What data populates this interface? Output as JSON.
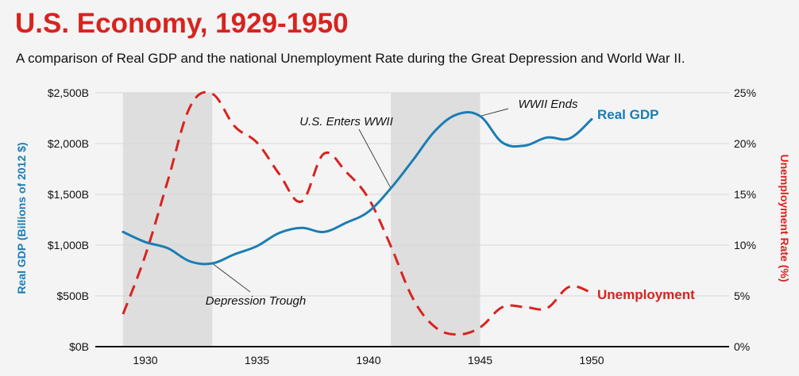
{
  "title": "U.S. Economy, 1929-1950",
  "subtitle": "A comparison of Real GDP and the national Unemployment Rate during the Great Depression and World War II.",
  "colors": {
    "title": "#d8231f",
    "gdp": "#1b7db4",
    "unemployment": "#d8231f",
    "shade": "#dedede",
    "grid": "#d6d6d6"
  },
  "chart_data": {
    "type": "line",
    "x": [
      1929,
      1930,
      1931,
      1932,
      1933,
      1934,
      1935,
      1936,
      1937,
      1938,
      1939,
      1940,
      1941,
      1942,
      1943,
      1944,
      1945,
      1946,
      1947,
      1948,
      1949,
      1950
    ],
    "xticks": [
      "1930",
      "1935",
      "1940",
      "1945",
      "1950"
    ],
    "xlim": [
      1928,
      1955
    ],
    "series": [
      {
        "name": "Real GDP",
        "axis": "left",
        "values": [
          1130,
          1030,
          970,
          840,
          820,
          910,
          990,
          1120,
          1170,
          1130,
          1220,
          1330,
          1560,
          1840,
          2130,
          2290,
          2270,
          2010,
          1980,
          2060,
          2050,
          2240
        ]
      },
      {
        "name": "Unemployment",
        "axis": "right",
        "values": [
          3.2,
          9.0,
          16.3,
          23.6,
          24.9,
          21.7,
          20.1,
          17.0,
          14.3,
          19.0,
          17.2,
          14.6,
          9.9,
          4.7,
          1.9,
          1.2,
          1.9,
          3.9,
          3.9,
          3.8,
          5.9,
          5.3
        ]
      }
    ],
    "left_axis": {
      "label": "Real GDP (Billions of 2012 $)",
      "ticks": [
        "$0B",
        "$500B",
        "$1,000B",
        "$1,500B",
        "$2,000B",
        "$2,500B"
      ],
      "ylim": [
        0,
        2500
      ]
    },
    "right_axis": {
      "label": "Unemployment Rate (%)",
      "ticks": [
        "0%",
        "5%",
        "10%",
        "15%",
        "20%",
        "25%"
      ],
      "ylim": [
        0,
        25
      ]
    },
    "shaded_periods": [
      [
        1929,
        1933
      ],
      [
        1941,
        1945
      ]
    ],
    "annotations": [
      {
        "text": "U.S. Enters WWII",
        "x": 1941,
        "y_gdp": 1560
      },
      {
        "text": "WWII Ends",
        "x": 1945,
        "y_gdp": 2270
      },
      {
        "text": "Depression Trough",
        "x": 1933,
        "y_gdp": 820
      }
    ],
    "grid": true
  }
}
